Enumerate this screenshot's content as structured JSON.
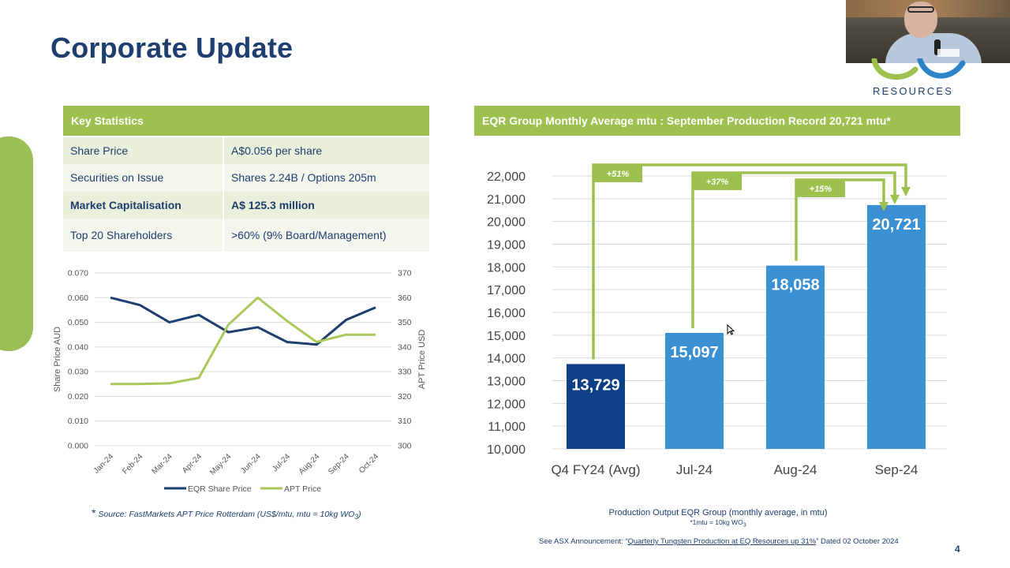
{
  "slide": {
    "title": "Corporate Update",
    "page_number": "4",
    "brand": "RESOURCES",
    "accent_color": "#9dc04e",
    "navy_color": "#1d3e6e",
    "video_badge_text": "EQ Resources"
  },
  "key_statistics": {
    "header": "Key Statistics",
    "rows": [
      {
        "label": "Share Price",
        "value": "A$0.056 per share",
        "bold": false
      },
      {
        "label": "Securities on Issue",
        "value": "Shares 2.24B / Options 205m",
        "bold": false
      },
      {
        "label": "Market Capitalisation",
        "value": "A$ 125.3 million",
        "bold": true
      },
      {
        "label": "Top 20 Shareholders",
        "value": ">60% (9% Board/Management)",
        "bold": false
      }
    ]
  },
  "source_note": {
    "star": "*",
    "text": "Source: FastMarkets APT Price Rotterdam (US$/mtu, mtu = 10kg WO",
    "subscript": "3",
    "close": ")"
  },
  "production": {
    "header": "EQR Group Monthly Average mtu : September Production Record 20,721 mtu*",
    "caption": "Production Output EQR Group (monthly average, in mtu)",
    "sub_caption": "*1mtu = 10kg WO",
    "sub_caption_subscript": "3"
  },
  "asx_note": {
    "prefix": "See ASX Announcement: “",
    "link": "Quarterly Tungsten Production at EQ Resources up 31%",
    "suffix": "” Dated 02 October 2024"
  },
  "chart_data": [
    {
      "type": "line",
      "title": "",
      "x": [
        "Jan-24",
        "Feb-24",
        "Mar-24",
        "Apr-24",
        "May-24",
        "Jun-24",
        "Jul-24",
        "Aug-24",
        "Sep-24",
        "Oct-24"
      ],
      "ylabel": "Share Price AUD",
      "y2label": "APT Price USD",
      "ylim": [
        0,
        0.07
      ],
      "y2lim": [
        300,
        370
      ],
      "yticks": [
        "0.000",
        "0.010",
        "0.020",
        "0.030",
        "0.040",
        "0.050",
        "0.060",
        "0.070"
      ],
      "y2ticks": [
        "300",
        "310",
        "320",
        "330",
        "340",
        "350",
        "360",
        "370"
      ],
      "series": [
        {
          "name": "EQR Share Price",
          "axis": "left",
          "color": "#1d3e6e",
          "values": [
            0.06,
            0.057,
            0.05,
            0.053,
            0.046,
            0.048,
            0.042,
            0.041,
            0.051,
            0.056
          ]
        },
        {
          "name": "APT Price",
          "axis": "right",
          "color": "#a9c85a",
          "values": [
            325,
            325,
            325.3,
            327.5,
            349,
            360,
            350.5,
            342,
            345,
            345
          ]
        }
      ],
      "grid": true,
      "legend": "bottom"
    },
    {
      "type": "bar",
      "title": "",
      "categories": [
        "Q4 FY24 (Avg)",
        "Jul-24",
        "Aug-24",
        "Sep-24"
      ],
      "values": [
        13729,
        15097,
        18058,
        20721
      ],
      "value_labels": [
        "13,729",
        "15,097",
        "18,058",
        "20,721"
      ],
      "colors": [
        "#0d3f86",
        "#3b8fd3",
        "#3b8fd3",
        "#3b8fd3"
      ],
      "ylim": [
        10000,
        22000
      ],
      "yticks": [
        "10,000",
        "11,000",
        "12,000",
        "13,000",
        "14,000",
        "15,000",
        "16,000",
        "17,000",
        "18,000",
        "19,000",
        "20,000",
        "21,000",
        "22,000"
      ],
      "annotations": [
        "+51%",
        "+37%",
        "+15%"
      ],
      "grid": true
    }
  ]
}
